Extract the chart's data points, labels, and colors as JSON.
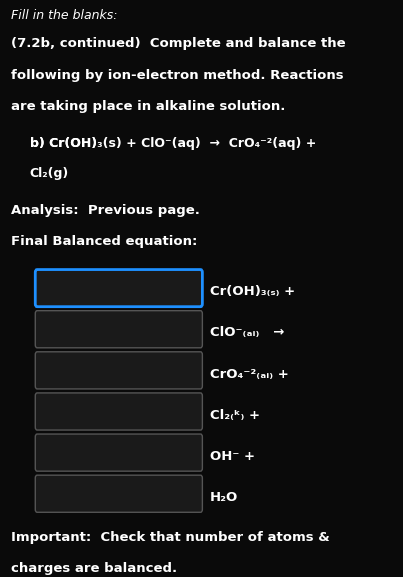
{
  "bg_color": "#0a0a0a",
  "text_color": "#ffffff",
  "box_border_color_active": "#1e90ff",
  "box_border_color_normal": "#555555",
  "box_fill_color": "#1a1a1a",
  "title_italic": "Fill in the blanks:",
  "paragraph1": "(7.2b, continued)  Complete and balance the\nfollowing by ion-electron method. Reactions\nare taking place in alkaline solution.",
  "reaction_line1": "b) Cr(OH)₃₍ₛ₎ + ClO⁻₍ₐᵢ₎  →  CrO₄⁻²₍ₐᵢ₎ +",
  "reaction_line2": "Cl₂₍ᵏ₎",
  "analysis": "Analysis:  Previous page.",
  "final_eq": "Final Balanced equation:",
  "blanks": [
    {
      "label": "Cr(OH)₃₍ₛ₎ +",
      "active": true
    },
    {
      "label": "ClO⁻₍ₐᵢ₎   →",
      "active": false
    },
    {
      "label": "CrO₄⁻²₍ₐᵢ₎ +",
      "active": false
    },
    {
      "label": "Cl₂₍ᵏ₎ +",
      "active": false
    },
    {
      "label": "OH⁻ +",
      "active": false
    },
    {
      "label": "H₂O",
      "active": false
    }
  ],
  "important": "Important:  Check that number of atoms &\ncharges are balanced.",
  "fig_width": 4.03,
  "fig_height": 5.77
}
